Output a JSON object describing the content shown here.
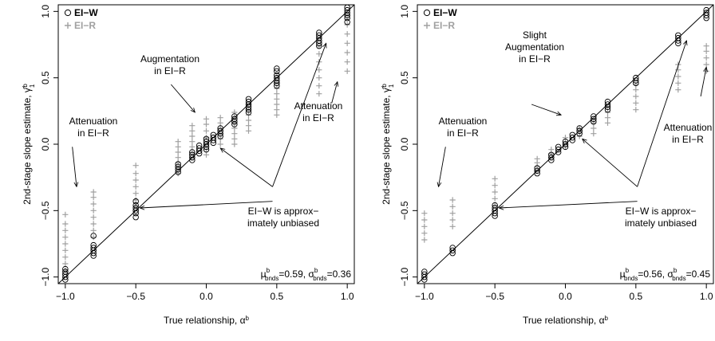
{
  "colors": {
    "ei_w": "#000000",
    "ei_r": "#a0a0a0",
    "identity_line": "#000000"
  },
  "chart_data": [
    {
      "type": "scatter",
      "xlabel": "True relationship, α",
      "xlabel_sup": "b",
      "ylabel": "2nd-stage slope estimate, γ̂",
      "ylabel_sub": "1",
      "ylabel_sup": "b",
      "xlim": [
        -1.05,
        1.05
      ],
      "ylim": [
        -1.05,
        1.05
      ],
      "xticks": [
        -1.0,
        -0.5,
        0.0,
        0.5,
        1.0
      ],
      "yticks": [
        -1.0,
        -0.5,
        0.0,
        0.5,
        1.0
      ],
      "xtick_labels": [
        "−1.0",
        "−0.5",
        "0.0",
        "0.5",
        "1.0"
      ],
      "ytick_labels": [
        "−1.0",
        "−0.5",
        "0.0",
        "0.5",
        "1.0"
      ],
      "legend": {
        "position": "top-left",
        "entries": [
          {
            "label": "EI−W",
            "marker": "circle"
          },
          {
            "label": "EI−R",
            "marker": "plus"
          }
        ]
      },
      "reference_line": "y = x",
      "series": [
        {
          "name": "EI−W",
          "marker": "circle",
          "points": [
            {
              "x": -1.0,
              "y": [
                -1.02,
                -1.0,
                -0.98,
                -0.96,
                -0.94
              ]
            },
            {
              "x": -0.8,
              "y": [
                -0.84,
                -0.82,
                -0.8,
                -0.78,
                -0.76,
                -0.69
              ]
            },
            {
              "x": -0.5,
              "y": [
                -0.55,
                -0.52,
                -0.5,
                -0.48,
                -0.46,
                -0.43
              ]
            },
            {
              "x": -0.2,
              "y": [
                -0.21,
                -0.19,
                -0.17,
                -0.15
              ]
            },
            {
              "x": -0.1,
              "y": [
                -0.12,
                -0.1,
                -0.08,
                -0.06
              ]
            },
            {
              "x": -0.05,
              "y": [
                -0.07,
                -0.05,
                -0.03,
                -0.01
              ]
            },
            {
              "x": 0.0,
              "y": [
                -0.04,
                -0.02,
                0.0,
                0.02,
                0.04
              ]
            },
            {
              "x": 0.05,
              "y": [
                0.01,
                0.03,
                0.05,
                0.07
              ]
            },
            {
              "x": 0.1,
              "y": [
                0.06,
                0.08,
                0.1,
                0.12
              ]
            },
            {
              "x": 0.2,
              "y": [
                0.15,
                0.17,
                0.19,
                0.21
              ]
            },
            {
              "x": 0.3,
              "y": [
                0.24,
                0.26,
                0.28,
                0.3,
                0.32,
                0.34
              ]
            },
            {
              "x": 0.5,
              "y": [
                0.44,
                0.46,
                0.48,
                0.5,
                0.52,
                0.55,
                0.57
              ]
            },
            {
              "x": 0.8,
              "y": [
                0.74,
                0.76,
                0.78,
                0.8,
                0.82,
                0.84
              ]
            },
            {
              "x": 1.0,
              "y": [
                0.92,
                0.95,
                0.97,
                0.99,
                1.01,
                1.03
              ]
            }
          ]
        },
        {
          "name": "EI−R",
          "marker": "plus",
          "points": [
            {
              "x": -1.0,
              "y": [
                -0.95,
                -0.9,
                -0.85,
                -0.8,
                -0.75,
                -0.7,
                -0.65,
                -0.6,
                -0.53
              ]
            },
            {
              "x": -0.8,
              "y": [
                -0.7,
                -0.65,
                -0.6,
                -0.55,
                -0.5,
                -0.45,
                -0.4,
                -0.36
              ]
            },
            {
              "x": -0.5,
              "y": [
                -0.47,
                -0.42,
                -0.37,
                -0.32,
                -0.27,
                -0.22,
                -0.16
              ]
            },
            {
              "x": -0.2,
              "y": [
                -0.22,
                -0.18,
                -0.14,
                -0.1,
                -0.06,
                -0.02,
                0.02
              ]
            },
            {
              "x": -0.1,
              "y": [
                -0.1,
                -0.06,
                -0.02,
                0.02,
                0.06,
                0.1,
                0.14
              ]
            },
            {
              "x": 0.0,
              "y": [
                -0.08,
                -0.04,
                0.0,
                0.05,
                0.1,
                0.15,
                0.19
              ]
            },
            {
              "x": 0.1,
              "y": [
                0.0,
                0.04,
                0.08,
                0.12,
                0.16,
                0.2
              ]
            },
            {
              "x": 0.2,
              "y": [
                0.0,
                0.04,
                0.08,
                0.12,
                0.16,
                0.2,
                0.24
              ]
            },
            {
              "x": 0.3,
              "y": [
                0.1,
                0.14,
                0.18,
                0.22,
                0.26,
                0.3
              ]
            },
            {
              "x": 0.5,
              "y": [
                0.22,
                0.26,
                0.3,
                0.34,
                0.38,
                0.42,
                0.46,
                0.5
              ]
            },
            {
              "x": 0.8,
              "y": [
                0.38,
                0.44,
                0.5,
                0.56,
                0.62,
                0.68,
                0.74,
                0.8
              ]
            },
            {
              "x": 1.0,
              "y": [
                0.55,
                0.62,
                0.69,
                0.76,
                0.83,
                0.9,
                0.97
              ]
            }
          ]
        }
      ],
      "annotations": [
        {
          "text": [
            "Augmentation",
            "in EI−R"
          ]
        },
        {
          "text": [
            "Attenuation",
            "in EI−R"
          ]
        },
        {
          "text": [
            "Attenuation",
            "in EI−R"
          ]
        },
        {
          "text": [
            "EI−W is approx−",
            "imately unbiased"
          ]
        }
      ],
      "stats": {
        "mu": "0.59",
        "sigma": "0.36"
      }
    },
    {
      "type": "scatter",
      "xlabel": "True relationship, α",
      "xlabel_sup": "b",
      "ylabel": "2nd-stage slope estimate, γ̂",
      "ylabel_sub": "1",
      "ylabel_sup": "b",
      "xlim": [
        -1.05,
        1.05
      ],
      "ylim": [
        -1.05,
        1.05
      ],
      "xticks": [
        -1.0,
        -0.5,
        0.0,
        0.5,
        1.0
      ],
      "yticks": [
        -1.0,
        -0.5,
        0.0,
        0.5,
        1.0
      ],
      "xtick_labels": [
        "−1.0",
        "−0.5",
        "0.0",
        "0.5",
        "1.0"
      ],
      "ytick_labels": [
        "−1.0",
        "−0.5",
        "0.0",
        "0.5",
        "1.0"
      ],
      "legend": {
        "position": "top-left",
        "entries": [
          {
            "label": "EI−W",
            "marker": "circle"
          },
          {
            "label": "EI−R",
            "marker": "plus"
          }
        ]
      },
      "reference_line": "y = x",
      "series": [
        {
          "name": "EI−W",
          "marker": "circle",
          "points": [
            {
              "x": -1.0,
              "y": [
                -1.02,
                -1.0,
                -0.98,
                -0.96
              ]
            },
            {
              "x": -0.8,
              "y": [
                -0.82,
                -0.8,
                -0.78
              ]
            },
            {
              "x": -0.5,
              "y": [
                -0.54,
                -0.52,
                -0.5,
                -0.48,
                -0.46
              ]
            },
            {
              "x": -0.2,
              "y": [
                -0.22,
                -0.2,
                -0.18
              ]
            },
            {
              "x": -0.1,
              "y": [
                -0.12,
                -0.1,
                -0.08
              ]
            },
            {
              "x": -0.05,
              "y": [
                -0.06,
                -0.04,
                -0.02
              ]
            },
            {
              "x": 0.0,
              "y": [
                -0.02,
                0.0,
                0.02
              ]
            },
            {
              "x": 0.05,
              "y": [
                0.03,
                0.05,
                0.07
              ]
            },
            {
              "x": 0.1,
              "y": [
                0.08,
                0.1,
                0.12
              ]
            },
            {
              "x": 0.2,
              "y": [
                0.17,
                0.19,
                0.21
              ]
            },
            {
              "x": 0.3,
              "y": [
                0.26,
                0.28,
                0.3,
                0.32
              ]
            },
            {
              "x": 0.5,
              "y": [
                0.46,
                0.48,
                0.5
              ]
            },
            {
              "x": 0.8,
              "y": [
                0.76,
                0.78,
                0.8,
                0.82
              ]
            },
            {
              "x": 1.0,
              "y": [
                0.95,
                0.97,
                0.99,
                1.01
              ]
            }
          ]
        },
        {
          "name": "EI−R",
          "marker": "plus",
          "points": [
            {
              "x": -1.0,
              "y": [
                -0.72,
                -0.67,
                -0.62,
                -0.57,
                -0.52
              ]
            },
            {
              "x": -0.8,
              "y": [
                -0.62,
                -0.57,
                -0.52,
                -0.47,
                -0.42
              ]
            },
            {
              "x": -0.5,
              "y": [
                -0.46,
                -0.41,
                -0.36,
                -0.31,
                -0.26
              ]
            },
            {
              "x": -0.2,
              "y": [
                -0.2,
                -0.17,
                -0.14,
                -0.11
              ]
            },
            {
              "x": -0.1,
              "y": [
                -0.1,
                -0.07,
                -0.04
              ]
            },
            {
              "x": 0.0,
              "y": [
                -0.02,
                0.0,
                0.02,
                0.05
              ]
            },
            {
              "x": 0.1,
              "y": [
                0.06,
                0.09,
                0.12
              ]
            },
            {
              "x": 0.2,
              "y": [
                0.08,
                0.12,
                0.16,
                0.19
              ]
            },
            {
              "x": 0.3,
              "y": [
                0.16,
                0.2,
                0.24,
                0.28
              ]
            },
            {
              "x": 0.5,
              "y": [
                0.26,
                0.31,
                0.36,
                0.41,
                0.45
              ]
            },
            {
              "x": 0.8,
              "y": [
                0.41,
                0.46,
                0.51,
                0.56,
                0.6
              ]
            },
            {
              "x": 1.0,
              "y": [
                0.55,
                0.6,
                0.65,
                0.7,
                0.74
              ]
            }
          ]
        }
      ],
      "annotations": [
        {
          "text": [
            "Slight",
            "Augmentation",
            "in EI−R"
          ]
        },
        {
          "text": [
            "Attenuation",
            "in EI−R"
          ]
        },
        {
          "text": [
            "Attenuation",
            "in EI−R"
          ]
        },
        {
          "text": [
            "EI−W is approx−",
            "imately unbiased"
          ]
        }
      ],
      "stats": {
        "mu": "0.56",
        "sigma": "0.45"
      }
    }
  ],
  "stat_labels": {
    "mu": "μ",
    "sigma": "σ",
    "sup": "b",
    "sub": "bnds",
    "eq": "="
  }
}
